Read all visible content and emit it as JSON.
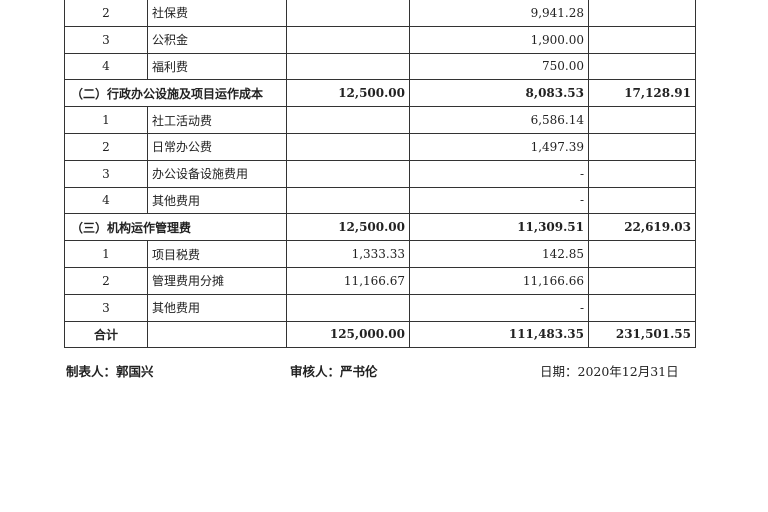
{
  "rows": [
    {
      "type": "item",
      "seq": "2",
      "name": "社保费",
      "budget": "",
      "actual": "9,941.28",
      "total": ""
    },
    {
      "type": "item",
      "seq": "3",
      "name": "公积金",
      "budget": "",
      "actual": "1,900.00",
      "total": ""
    },
    {
      "type": "item",
      "seq": "4",
      "name": "福利费",
      "budget": "",
      "actual": "750.00",
      "total": ""
    },
    {
      "type": "section",
      "name": "（二）行政办公设施及项目运作成本",
      "budget": "12,500.00",
      "actual": "8,083.53",
      "total": "17,128.91"
    },
    {
      "type": "item",
      "seq": "1",
      "name": "社工活动费",
      "budget": "",
      "actual": "6,586.14",
      "total": ""
    },
    {
      "type": "item",
      "seq": "2",
      "name": "日常办公费",
      "budget": "",
      "actual": "1,497.39",
      "total": ""
    },
    {
      "type": "item",
      "seq": "3",
      "name": "办公设备设施费用",
      "budget": "",
      "actual": "-",
      "total": ""
    },
    {
      "type": "item",
      "seq": "4",
      "name": "其他费用",
      "budget": "",
      "actual": "-",
      "total": ""
    },
    {
      "type": "section",
      "name": "（三）机构运作管理费",
      "budget": "12,500.00",
      "actual": "11,309.51",
      "total": "22,619.03"
    },
    {
      "type": "item",
      "seq": "1",
      "name": "项目税费",
      "budget": "1,333.33",
      "actual": "142.85",
      "total": ""
    },
    {
      "type": "item",
      "seq": "2",
      "name": "管理费用分摊",
      "budget": "11,166.67",
      "actual": "11,166.66",
      "total": ""
    },
    {
      "type": "item",
      "seq": "3",
      "name": "其他费用",
      "budget": "",
      "actual": "-",
      "total": ""
    },
    {
      "type": "total",
      "seq": "合计",
      "name": "",
      "budget": "125,000.00",
      "actual": "111,483.35",
      "total": "231,501.55"
    }
  ],
  "footer": {
    "preparer": "制表人：郭国兴",
    "reviewer": "审核人：严书伦",
    "date": "日期：2020年12月31日"
  }
}
